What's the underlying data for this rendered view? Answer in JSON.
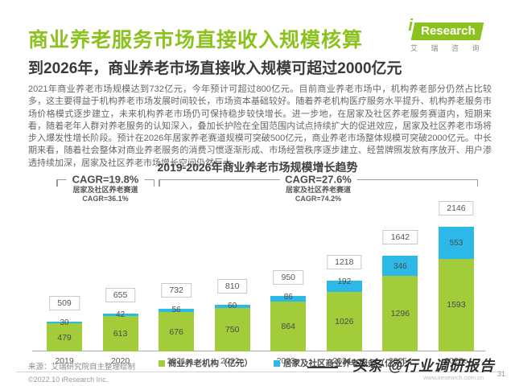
{
  "header": {
    "title": "商业养老服务市场直接收入规模核算",
    "subtitle": "到2026年，商业养老市场直接收入规模可超过2000亿元",
    "logo": {
      "i": "i",
      "research": "Research",
      "subtext": "艾 瑞 咨 询"
    }
  },
  "body_paragraph": "2021年商业养老市场规模达到732亿元，今年预计可超过800亿元。目前商业养老市场中，机构养老部分仍然占比较多，这主要得益于机构养老市场发展时间较长，市场资本基础较好。随着养老机构医疗服务水平提升、机构养老服务市场价格模式逐步建立，未来机构养老市场仍可保持稳步较快增长。进一步地，在居家及社区养老服务赛道内，短期来看，随着老年人群对养老服务的认知深入，叠加长护险在全国范围内试点持续扩大的促进效应，居家及社区养老市场将步入爆发性增长阶段。预计在2026年居家养老赛道规模可突破500亿元，商业养老市场整体规模可突破2000亿元。中长期来看，随着社会整体对商业养老服务的消费习惯逐渐形成、市场经营秩序逐步建立、经营牌照发放有序放开、用户渗透持续加深，居家及社区养老市场增长空间仍然巨大。",
  "chart_data": {
    "type": "bar",
    "stacked": true,
    "title": "2019-2026年商业养老市场规模增长趋势",
    "categories": [
      "2019",
      "2020",
      "2021",
      "2022e",
      "2023e",
      "2024e",
      "2025e",
      "2026e"
    ],
    "series": [
      {
        "name": "商业养老机构（亿元）",
        "color": "#a2cc3a",
        "values": [
          479,
          613,
          676,
          750,
          864,
          1026,
          1296,
          1593
        ]
      },
      {
        "name": "居家及社区商业养老服务（亿元）",
        "color": "#2db9e8",
        "values": [
          30,
          42,
          56,
          60,
          86,
          192,
          346,
          553
        ]
      }
    ],
    "totals": [
      509,
      655,
      732,
      810,
      950,
      1218,
      1642,
      2146
    ],
    "ylim": [
      0,
      2200
    ],
    "legend_position": "bottom",
    "annotations": [
      {
        "label": "CAGR=19.8%",
        "sub1": "居家及社区养老赛道",
        "sub2": "CAGR=36.1%",
        "range": "2019-2021"
      },
      {
        "label": "CAGR=27.6%",
        "sub1": "居家及社区养老赛道",
        "sub2": "CAGR=74.2%",
        "range": "2021-2026e"
      }
    ]
  },
  "footer": {
    "source": "来源：艾瑞研究院自主整理绘制",
    "copyright": "©2022.10 iResearch Inc.",
    "page_number": "31",
    "watermark_brand": "头条",
    "watermark_handle": "@行业调研报告",
    "watermark_url": "www.iresearch.com.cn"
  }
}
